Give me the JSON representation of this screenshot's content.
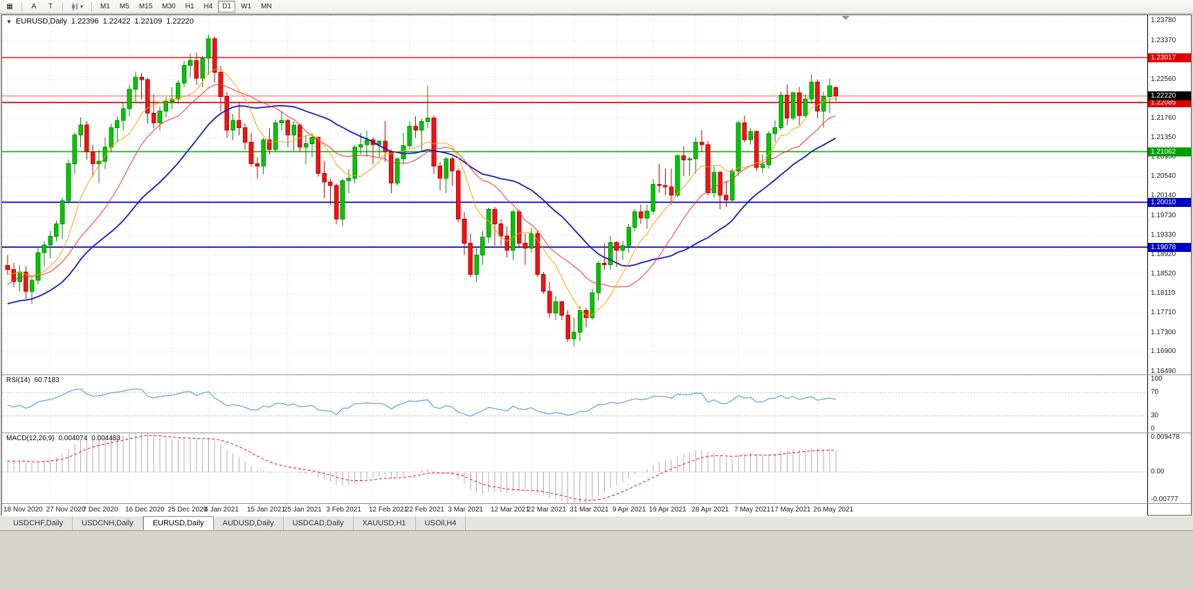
{
  "toolbar": {
    "grid_icon_glyph": "▦",
    "tool_a": "A",
    "tool_t": "T",
    "dropdown_arrow": "▾",
    "timeframes": [
      "M1",
      "M5",
      "M15",
      "M30",
      "H1",
      "H4",
      "D1",
      "W1",
      "MN"
    ],
    "active_timeframe": "D1"
  },
  "chart": {
    "title": {
      "collapse": "▼",
      "symbol": "EURUSD,Daily",
      "open": "1.22396",
      "high": "1.22422",
      "low": "1.22109",
      "close": "1.22220"
    },
    "price_scale": {
      "top": 1.239,
      "bottom": 1.1643
    },
    "colors": {
      "up": "#00C800",
      "up_border": "#008A00",
      "down": "#F01414",
      "down_border": "#BE0000",
      "ma_fast": "#FFA000",
      "ma_mid": "#FF2A2A",
      "ma_slow": "#1414C8",
      "grid": "#d6d6d6"
    },
    "hlines": [
      {
        "price": 1.23017,
        "color": "#FF0000",
        "width": 1.4,
        "label": "1.23017",
        "badge": "#E00000"
      },
      {
        "price": 1.22085,
        "color": "#FF0000",
        "width": 1.8,
        "label": "1.22085",
        "badge": "#E00000"
      },
      {
        "price": 1.21062,
        "color": "#00C000",
        "width": 1.6,
        "label": "1.21062",
        "badge": "#00A000"
      },
      {
        "price": 1.2001,
        "color": "#0000E6",
        "width": 1.8,
        "label": "1.20010",
        "badge": "#0000C8"
      },
      {
        "price": 1.19078,
        "color": "#0000E6",
        "width": 1.8,
        "label": "1.19078",
        "badge": "#0000C8"
      }
    ],
    "current_price": {
      "value": 1.2222,
      "label": "1.22220",
      "badge": "#000000",
      "line_color": "#FF5050"
    },
    "y_axis_labels": [
      "1.23780",
      "1.23370",
      "1.22960",
      "1.22560",
      "1.22150",
      "1.21760",
      "1.21350",
      "1.20950",
      "1.20540",
      "1.20140",
      "1.19730",
      "1.19330",
      "1.18920",
      "1.18520",
      "1.18110",
      "1.17710",
      "1.17300",
      "1.16900",
      "1.16490"
    ],
    "x_labels": [
      {
        "text": "18 Nov 2020",
        "candle": 0
      },
      {
        "text": "27 Nov 2020",
        "candle": 7
      },
      {
        "text": "7 Dec 2020",
        "candle": 13
      },
      {
        "text": "16 Dec 2020",
        "candle": 20
      },
      {
        "text": "25 Dec 2020",
        "candle": 27
      },
      {
        "text": "6 Jan 2021",
        "candle": 33
      },
      {
        "text": "15 Jan 2021",
        "candle": 40
      },
      {
        "text": "25 Jan 2021",
        "candle": 46
      },
      {
        "text": "3 Feb 2021",
        "candle": 53
      },
      {
        "text": "12 Feb 2021",
        "candle": 60
      },
      {
        "text": "22 Feb 2021",
        "candle": 66
      },
      {
        "text": "3 Mar 2021",
        "candle": 73
      },
      {
        "text": "12 Mar 2021",
        "candle": 80
      },
      {
        "text": "22 Mar 2021",
        "candle": 86
      },
      {
        "text": "31 Mar 2021",
        "candle": 93
      },
      {
        "text": "9 Apr 2021",
        "candle": 100
      },
      {
        "text": "19 Apr 2021",
        "candle": 106
      },
      {
        "text": "28 Apr 2021",
        "candle": 113
      },
      {
        "text": "7 May 2021",
        "candle": 120
      },
      {
        "text": "17 May 2021",
        "candle": 126
      },
      {
        "text": "26 May 2021",
        "candle": 133
      }
    ],
    "prehistory_closes": [
      1.1815,
      1.183,
      1.1842,
      1.1828,
      1.181,
      1.1795,
      1.1782,
      1.1768,
      1.1752,
      1.1738,
      1.1722,
      1.1705,
      1.1688,
      1.1672,
      1.1658,
      1.1645,
      1.1662,
      1.1688,
      1.1712,
      1.1735,
      1.1752,
      1.174,
      1.1728,
      1.1742,
      1.1758,
      1.177,
      1.1762,
      1.1748,
      1.1735,
      1.1722,
      1.1712,
      1.1725,
      1.174,
      1.1755,
      1.1768,
      1.178,
      1.1772,
      1.176,
      1.1748,
      1.1735,
      1.172,
      1.1742,
      1.1716,
      1.169,
      1.1665,
      1.17,
      1.1745,
      1.179,
      1.1838,
      1.1872,
      1.1862,
      1.1848,
      1.1812,
      1.182,
      1.1835,
      1.1852,
      1.1866,
      1.1878,
      1.1855,
      1.1842
    ],
    "candles": [
      [
        1.187,
        1.1891,
        1.185,
        1.1861
      ],
      [
        1.1861,
        1.1875,
        1.1825,
        1.1836
      ],
      [
        1.1836,
        1.187,
        1.1815,
        1.1856
      ],
      [
        1.1856,
        1.1868,
        1.18,
        1.1816
      ],
      [
        1.1816,
        1.1845,
        1.179,
        1.1839
      ],
      [
        1.1839,
        1.1906,
        1.183,
        1.1896
      ],
      [
        1.1896,
        1.192,
        1.1868,
        1.1912
      ],
      [
        1.1912,
        1.1941,
        1.1885,
        1.193
      ],
      [
        1.193,
        1.1963,
        1.192,
        1.1956
      ],
      [
        1.1956,
        1.2011,
        1.1925,
        1.2004
      ],
      [
        1.2004,
        1.209,
        1.1998,
        1.2081
      ],
      [
        1.2081,
        1.2145,
        1.206,
        1.2141
      ],
      [
        1.2141,
        1.2178,
        1.2115,
        1.2162
      ],
      [
        1.2162,
        1.217,
        1.209,
        1.2106
      ],
      [
        1.2106,
        1.212,
        1.2055,
        1.2081
      ],
      [
        1.2081,
        1.211,
        1.204,
        1.2086
      ],
      [
        1.2086,
        1.2135,
        1.207,
        1.2116
      ],
      [
        1.2116,
        1.2165,
        1.2105,
        1.2156
      ],
      [
        1.2156,
        1.218,
        1.2125,
        1.2171
      ],
      [
        1.2171,
        1.221,
        1.215,
        1.2196
      ],
      [
        1.2196,
        1.2245,
        1.218,
        1.2236
      ],
      [
        1.2236,
        1.2273,
        1.221,
        1.2261
      ],
      [
        1.2261,
        1.227,
        1.2215,
        1.2256
      ],
      [
        1.2256,
        1.226,
        1.2165,
        1.2186
      ],
      [
        1.2186,
        1.2225,
        1.2155,
        1.2166
      ],
      [
        1.2166,
        1.22,
        1.215,
        1.2191
      ],
      [
        1.2191,
        1.222,
        1.2178,
        1.2211
      ],
      [
        1.2211,
        1.224,
        1.2195,
        1.2216
      ],
      [
        1.2216,
        1.2255,
        1.2205,
        1.2249
      ],
      [
        1.2249,
        1.2295,
        1.224,
        1.2286
      ],
      [
        1.2286,
        1.231,
        1.226,
        1.2296
      ],
      [
        1.2296,
        1.2312,
        1.2245,
        1.2259
      ],
      [
        1.2259,
        1.2305,
        1.224,
        1.2301
      ],
      [
        1.2301,
        1.235,
        1.2266,
        1.2341
      ],
      [
        1.2341,
        1.2346,
        1.225,
        1.2271
      ],
      [
        1.2271,
        1.2285,
        1.219,
        1.2221
      ],
      [
        1.2221,
        1.223,
        1.2135,
        1.2151
      ],
      [
        1.2151,
        1.2185,
        1.213,
        1.2171
      ],
      [
        1.2171,
        1.221,
        1.214,
        1.2156
      ],
      [
        1.2156,
        1.2165,
        1.211,
        1.2126
      ],
      [
        1.2126,
        1.2145,
        1.2075,
        1.2081
      ],
      [
        1.2081,
        1.2095,
        1.205,
        1.2076
      ],
      [
        1.2076,
        1.2135,
        1.206,
        1.2131
      ],
      [
        1.2131,
        1.2155,
        1.21,
        1.2111
      ],
      [
        1.2111,
        1.2173,
        1.2105,
        1.2166
      ],
      [
        1.2166,
        1.219,
        1.215,
        1.2171
      ],
      [
        1.2171,
        1.2175,
        1.2115,
        1.2141
      ],
      [
        1.2141,
        1.217,
        1.2108,
        1.2161
      ],
      [
        1.2161,
        1.2165,
        1.2105,
        1.2116
      ],
      [
        1.2116,
        1.214,
        1.208,
        1.2123
      ],
      [
        1.2123,
        1.2145,
        1.2095,
        1.2136
      ],
      [
        1.2136,
        1.2138,
        1.2055,
        1.2061
      ],
      [
        1.2061,
        1.2087,
        1.201,
        1.2043
      ],
      [
        1.2043,
        1.205,
        1.1995,
        1.2036
      ],
      [
        1.2036,
        1.204,
        1.1955,
        1.1966
      ],
      [
        1.1966,
        1.205,
        1.1952,
        1.2046
      ],
      [
        1.2046,
        1.207,
        1.202,
        1.2051
      ],
      [
        1.2051,
        1.212,
        1.204,
        1.2116
      ],
      [
        1.2116,
        1.2145,
        1.21,
        1.2121
      ],
      [
        1.2121,
        1.215,
        1.2095,
        1.2131
      ],
      [
        1.2131,
        1.2136,
        1.208,
        1.2121
      ],
      [
        1.2121,
        1.213,
        1.2095,
        1.2128
      ],
      [
        1.2128,
        1.217,
        1.2085,
        1.2106
      ],
      [
        1.2106,
        1.211,
        1.202,
        1.2041
      ],
      [
        1.2041,
        1.2095,
        1.2035,
        1.2091
      ],
      [
        1.2091,
        1.2145,
        1.208,
        1.2119
      ],
      [
        1.2119,
        1.217,
        1.2112,
        1.2159
      ],
      [
        1.2159,
        1.218,
        1.2135,
        1.2151
      ],
      [
        1.2151,
        1.2175,
        1.2108,
        1.2169
      ],
      [
        1.2169,
        1.2243,
        1.2155,
        1.2176
      ],
      [
        1.2176,
        1.2181,
        1.206,
        1.2076
      ],
      [
        1.2076,
        1.2085,
        1.2025,
        1.2051
      ],
      [
        1.2051,
        1.2095,
        1.202,
        1.2091
      ],
      [
        1.2091,
        1.2096,
        1.2035,
        1.2066
      ],
      [
        1.2066,
        1.2071,
        1.196,
        1.1966
      ],
      [
        1.1966,
        1.1981,
        1.1891,
        1.1916
      ],
      [
        1.1916,
        1.1936,
        1.1845,
        1.1851
      ],
      [
        1.1851,
        1.1906,
        1.1836,
        1.1891
      ],
      [
        1.1891,
        1.1941,
        1.1871,
        1.1929
      ],
      [
        1.1929,
        1.199,
        1.1916,
        1.1986
      ],
      [
        1.1986,
        1.1991,
        1.1911,
        1.1956
      ],
      [
        1.1956,
        1.1966,
        1.1911,
        1.1931
      ],
      [
        1.1931,
        1.1951,
        1.1886,
        1.1901
      ],
      [
        1.1901,
        1.1986,
        1.1881,
        1.1981
      ],
      [
        1.1981,
        1.1986,
        1.1906,
        1.1916
      ],
      [
        1.1916,
        1.1936,
        1.1871,
        1.1906
      ],
      [
        1.1906,
        1.1949,
        1.1896,
        1.1936
      ],
      [
        1.1936,
        1.1941,
        1.1846,
        1.1851
      ],
      [
        1.1851,
        1.1856,
        1.1811,
        1.1816
      ],
      [
        1.1816,
        1.1836,
        1.1761,
        1.1771
      ],
      [
        1.1771,
        1.1806,
        1.1756,
        1.1794
      ],
      [
        1.1794,
        1.1796,
        1.1756,
        1.1766
      ],
      [
        1.1766,
        1.1776,
        1.1711,
        1.1717
      ],
      [
        1.1717,
        1.1761,
        1.1701,
        1.1731
      ],
      [
        1.1731,
        1.1786,
        1.1713,
        1.1776
      ],
      [
        1.1776,
        1.1781,
        1.1741,
        1.1761
      ],
      [
        1.1761,
        1.1821,
        1.1756,
        1.1813
      ],
      [
        1.1813,
        1.1879,
        1.1796,
        1.1874
      ],
      [
        1.1874,
        1.1916,
        1.1861,
        1.1871
      ],
      [
        1.1871,
        1.1931,
        1.1861,
        1.1917
      ],
      [
        1.1917,
        1.1921,
        1.1866,
        1.1901
      ],
      [
        1.1901,
        1.1921,
        1.1881,
        1.1911
      ],
      [
        1.1911,
        1.1956,
        1.1896,
        1.1949
      ],
      [
        1.1949,
        1.1986,
        1.1941,
        1.1981
      ],
      [
        1.1981,
        1.1996,
        1.1956,
        1.1968
      ],
      [
        1.1968,
        1.1996,
        1.1946,
        1.1983
      ],
      [
        1.1983,
        1.2049,
        1.1976,
        1.2038
      ],
      [
        1.2038,
        1.2081,
        1.2021,
        1.2036
      ],
      [
        1.2036,
        1.2071,
        1.2016,
        1.2033
      ],
      [
        1.2033,
        1.2071,
        1.1996,
        1.2016
      ],
      [
        1.2016,
        1.2101,
        1.2011,
        1.2098
      ],
      [
        1.2098,
        1.2118,
        1.2056,
        1.2089
      ],
      [
        1.2089,
        1.2096,
        1.2056,
        1.2091
      ],
      [
        1.2091,
        1.2136,
        1.2061,
        1.2126
      ],
      [
        1.2126,
        1.2151,
        1.2106,
        1.2121
      ],
      [
        1.2121,
        1.2129,
        1.2016,
        1.2021
      ],
      [
        1.2021,
        1.2076,
        1.2011,
        1.2063
      ],
      [
        1.2063,
        1.2066,
        1.1986,
        1.2016
      ],
      [
        1.2016,
        1.2046,
        1.1991,
        1.2006
      ],
      [
        1.2006,
        1.2071,
        1.2001,
        1.2066
      ],
      [
        1.2066,
        1.2171,
        1.2056,
        1.2166
      ],
      [
        1.2166,
        1.2181,
        1.2126,
        1.2131
      ],
      [
        1.2131,
        1.2156,
        1.2121,
        1.2148
      ],
      [
        1.2148,
        1.2151,
        1.2066,
        1.2073
      ],
      [
        1.2073,
        1.2101,
        1.2061,
        1.2079
      ],
      [
        1.2079,
        1.2149,
        1.2071,
        1.2144
      ],
      [
        1.2144,
        1.2171,
        1.2126,
        1.2156
      ],
      [
        1.2156,
        1.2231,
        1.2151,
        1.2224
      ],
      [
        1.2224,
        1.2246,
        1.2161,
        1.2176
      ],
      [
        1.2176,
        1.2231,
        1.2171,
        1.2229
      ],
      [
        1.2229,
        1.2241,
        1.2161,
        1.2181
      ],
      [
        1.2181,
        1.2226,
        1.2176,
        1.2216
      ],
      [
        1.2216,
        1.2266,
        1.2206,
        1.2251
      ],
      [
        1.2251,
        1.2256,
        1.2176,
        1.2191
      ],
      [
        1.2191,
        1.2231,
        1.2156,
        1.2221
      ],
      [
        1.2221,
        1.2258,
        1.2186,
        1.2243
      ],
      [
        1.22396,
        1.22422,
        1.22109,
        1.2222
      ]
    ]
  },
  "rsi": {
    "name": "RSI(14)",
    "value": "60.7183",
    "period": 14,
    "levels": [
      70,
      30
    ],
    "axis_labels": [
      {
        "text": "100",
        "value": 100
      },
      {
        "text": "70",
        "value": 70
      },
      {
        "text": "30",
        "value": 30
      },
      {
        "text": "0",
        "value": 0
      }
    ],
    "line_color": "#5DA0DC"
  },
  "macd": {
    "name": "MACD(12,26,9)",
    "value_main": "0.004074",
    "value_signal": "0.004483",
    "fast": 12,
    "slow": 26,
    "signal": 9,
    "scale_max": 0.009478,
    "scale_min": -0.00777,
    "axis_labels": [
      {
        "text": "0.009478",
        "value": 0.009478
      },
      {
        "text": "0.00",
        "value": 0
      },
      {
        "text": "-0.00777",
        "value": -0.00777
      }
    ],
    "bar_color": "#ACACAC",
    "signal_color": "#FF0000"
  },
  "bottom_tabs": {
    "labels": [
      "USDCHF,Daily",
      "USDCNH,Daily",
      "EURUSD,Daily",
      "AUDUSD,Daily",
      "USDCAD,Daily",
      "XAUUSD,H1",
      "USOil,H4"
    ],
    "active_index": 2
  }
}
